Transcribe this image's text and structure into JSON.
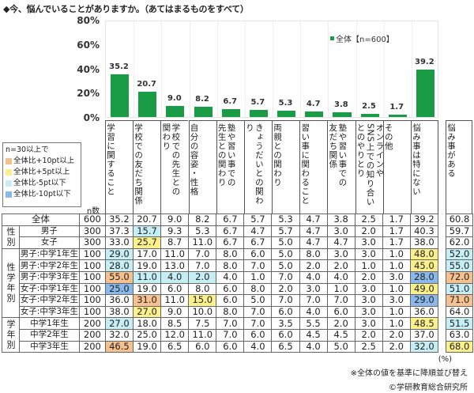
{
  "title": "◆今、悩んでいることがありますか。（あてはまるものをすべて）",
  "legend": {
    "label": "全体【n=600】",
    "color": "#1a9b46"
  },
  "y_ticks": [
    "80%",
    "60%",
    "40%",
    "20%",
    "0%"
  ],
  "highlight_legend": {
    "heading": "n=30以上で",
    "items": [
      {
        "label": "全体比+10pt以上",
        "color": "#f6c18e"
      },
      {
        "label": "全体比+5pt以上",
        "color": "#fbf08a"
      },
      {
        "label": "全体比-5pt以下",
        "color": "#c6eef5"
      },
      {
        "label": "全体比-10pt以下",
        "color": "#8ab8ea"
      }
    ]
  },
  "table": {
    "n_header": "n数",
    "extra_header": "悩み事がある",
    "group_labels": {
      "gender": "性別",
      "gender_grade": "性学年別",
      "grade": "学年別"
    }
  },
  "chart_data": {
    "type": "bar",
    "title": "◆今、悩んでいることがありますか。（あてはまるものをすべて）",
    "xlabel": "",
    "ylabel": "",
    "ylim": [
      0,
      80
    ],
    "yticks": [
      0,
      20,
      40,
      60,
      80
    ],
    "grid": true,
    "legend_position": "top-right",
    "categories": [
      "学習に関すること",
      "学校での友だち関係",
      "学校での先生との関わり",
      "自分の容姿・性格",
      "塾や習い事での先生との関わり",
      "きょうだいとの関わり",
      "両親との関わり",
      "習い事に関わること",
      "塾や習い事での友だち関係",
      "オンラインやSNS上での知り合いとのやりとり",
      "その他",
      "悩み事は特にない"
    ],
    "category_headers": [
      "学習に関すること",
      "学校での友だち関係",
      "学校での先生との\n関わり",
      "自分の容姿・性格",
      "塾や習い事での\n先生との関わり",
      "きょうだいとの関わり",
      "両親との関わり",
      "習い事に関わること",
      "塾や習い事での\n友だち関係",
      "オンラインや\nSNS上での知り合い\nとのやりとり",
      "その他",
      "悩み事は特にない"
    ],
    "series": [
      {
        "name": "全体【n=600】",
        "values": [
          35.2,
          20.7,
          9.0,
          8.2,
          6.7,
          5.7,
          5.3,
          4.7,
          3.8,
          2.5,
          1.7,
          39.2
        ]
      }
    ],
    "value_labels": [
      "35.2",
      "20.7",
      "9.0",
      "8.2",
      "6.7",
      "5.7",
      "5.3",
      "4.7",
      "3.8",
      "2.5",
      "1.7",
      "39.2"
    ],
    "table_rows": [
      {
        "group": "",
        "label": "全体",
        "n": "600",
        "values": [
          "35.2",
          "20.7",
          "9.0",
          "8.2",
          "6.7",
          "5.7",
          "5.3",
          "4.7",
          "3.8",
          "2.5",
          "1.7",
          "39.2"
        ],
        "extra": "60.8",
        "hl": [
          "",
          "",
          "",
          "",
          "",
          "",
          "",
          "",
          "",
          "",
          "",
          ""
        ],
        "extra_hl": ""
      },
      {
        "group": "gender",
        "label": "男子",
        "n": "300",
        "values": [
          "37.3",
          "15.7",
          "9.3",
          "5.3",
          "6.7",
          "4.7",
          "5.7",
          "4.7",
          "3.0",
          "2.0",
          "1.7",
          "40.3"
        ],
        "extra": "59.7",
        "hl": [
          "",
          "lightblue",
          "",
          "",
          "",
          "",
          "",
          "",
          "",
          "",
          "",
          ""
        ],
        "extra_hl": ""
      },
      {
        "group": "gender",
        "label": "女子",
        "n": "300",
        "values": [
          "33.0",
          "25.7",
          "8.7",
          "11.0",
          "6.7",
          "6.7",
          "5.0",
          "4.7",
          "4.7",
          "3.0",
          "1.7",
          "38.0"
        ],
        "extra": "62.0",
        "hl": [
          "",
          "yellow",
          "",
          "",
          "",
          "",
          "",
          "",
          "",
          "",
          "",
          ""
        ],
        "extra_hl": ""
      },
      {
        "group": "gender_grade",
        "label": "男子:中学1年生",
        "n": "100",
        "values": [
          "29.0",
          "17.0",
          "11.0",
          "7.0",
          "8.0",
          "6.0",
          "5.0",
          "8.0",
          "3.0",
          "3.0",
          "1.0",
          "48.0"
        ],
        "extra": "52.0",
        "hl": [
          "lightblue",
          "",
          "",
          "",
          "",
          "",
          "",
          "",
          "",
          "",
          "",
          "yellow"
        ],
        "extra_hl": "lightblue"
      },
      {
        "group": "gender_grade",
        "label": "男子:中学2年生",
        "n": "100",
        "values": [
          "28.0",
          "19.0",
          "13.0",
          "7.0",
          "8.0",
          "7.0",
          "5.0",
          "2.0",
          "2.0",
          "1.0",
          "1.0",
          "45.0"
        ],
        "extra": "55.0",
        "hl": [
          "lightblue",
          "",
          "",
          "",
          "",
          "",
          "",
          "",
          "",
          "",
          "",
          "yellow"
        ],
        "extra_hl": "lightblue"
      },
      {
        "group": "gender_grade",
        "label": "男子:中学3年生",
        "n": "100",
        "values": [
          "55.0",
          "11.0",
          "4.0",
          "2.0",
          "4.0",
          "1.0",
          "7.0",
          "4.0",
          "4.0",
          "2.0",
          "3.0",
          "28.0"
        ],
        "extra": "72.0",
        "hl": [
          "orange",
          "lightblue",
          "lightblue",
          "lightblue",
          "",
          "",
          "",
          "",
          "",
          "",
          "",
          "blue"
        ],
        "extra_hl": "orange"
      },
      {
        "group": "gender_grade",
        "label": "女子:中学1年生",
        "n": "100",
        "values": [
          "25.0",
          "19.0",
          "6.0",
          "8.0",
          "6.0",
          "8.0",
          "2.0",
          "3.0",
          "1.0",
          "3.0",
          "1.0",
          "49.0"
        ],
        "extra": "51.0",
        "hl": [
          "blue",
          "",
          "",
          "",
          "",
          "",
          "",
          "",
          "",
          "",
          "",
          "yellow"
        ],
        "extra_hl": "lightblue"
      },
      {
        "group": "gender_grade",
        "label": "女子:中学2年生",
        "n": "100",
        "values": [
          "36.0",
          "31.0",
          "11.0",
          "15.0",
          "6.0",
          "5.0",
          "7.0",
          "7.0",
          "7.0",
          "3.0",
          "3.0",
          "29.0"
        ],
        "extra": "71.0",
        "hl": [
          "",
          "orange",
          "",
          "yellow",
          "",
          "",
          "",
          "",
          "",
          "",
          "",
          "blue"
        ],
        "extra_hl": "orange"
      },
      {
        "group": "gender_grade",
        "label": "女子:中学3年生",
        "n": "100",
        "values": [
          "38.0",
          "27.0",
          "9.0",
          "10.0",
          "8.0",
          "7.0",
          "6.0",
          "4.0",
          "6.0",
          "3.0",
          "1.0",
          "36.0"
        ],
        "extra": "64.0",
        "hl": [
          "",
          "yellow",
          "",
          "",
          "",
          "",
          "",
          "",
          "",
          "",
          "",
          ""
        ],
        "extra_hl": ""
      },
      {
        "group": "grade",
        "label": "中学1年生",
        "n": "200",
        "values": [
          "27.0",
          "18.0",
          "8.5",
          "7.5",
          "7.0",
          "7.0",
          "3.5",
          "5.5",
          "2.0",
          "3.0",
          "1.0",
          "48.5"
        ],
        "extra": "51.5",
        "hl": [
          "lightblue",
          "",
          "",
          "",
          "",
          "",
          "",
          "",
          "",
          "",
          "",
          "yellow"
        ],
        "extra_hl": "lightblue"
      },
      {
        "group": "grade",
        "label": "中学2年生",
        "n": "200",
        "values": [
          "32.0",
          "25.0",
          "12.0",
          "11.0",
          "7.0",
          "6.0",
          "6.0",
          "4.5",
          "4.5",
          "2.0",
          "2.0",
          "37.0"
        ],
        "extra": "63.0",
        "hl": [
          "",
          "",
          "",
          "",
          "",
          "",
          "",
          "",
          "",
          "",
          "",
          ""
        ],
        "extra_hl": ""
      },
      {
        "group": "grade",
        "label": "中学3年生",
        "n": "200",
        "values": [
          "46.5",
          "19.0",
          "6.5",
          "6.0",
          "6.0",
          "4.0",
          "6.5",
          "4.0",
          "5.0",
          "2.5",
          "2.0",
          "32.0"
        ],
        "extra": "68.0",
        "hl": [
          "orange",
          "",
          "",
          "",
          "",
          "",
          "",
          "",
          "",
          "",
          "",
          "lightblue"
        ],
        "extra_hl": "yellow"
      }
    ]
  },
  "footer": {
    "unit": "(%)",
    "note": "※全体の値を基準に降順並び替え",
    "copyright": "©学研教育総合研究所"
  }
}
